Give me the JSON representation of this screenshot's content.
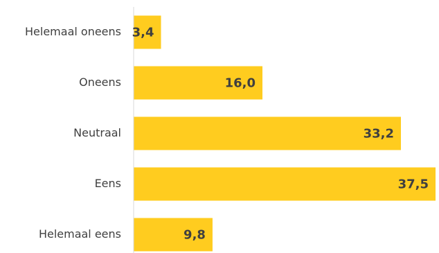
{
  "chart_data": {
    "type": "bar",
    "orientation": "horizontal",
    "title": "",
    "xlabel": "",
    "ylabel": "",
    "categories": [
      "Helemaal oneens",
      "Oneens",
      "Neutraal",
      "Eens",
      "Helemaal eens"
    ],
    "values": [
      3.4,
      16.0,
      33.2,
      37.5,
      9.8
    ],
    "value_labels": [
      "3,4",
      "16,0",
      "33,2",
      "37,5",
      "9,8"
    ],
    "xlim": [
      0,
      37.5
    ],
    "grid": false,
    "legend": "none",
    "colors": {
      "bar": "#FFCC1F",
      "axis": "#d9d9d9",
      "text": "#3f3f3f"
    }
  }
}
